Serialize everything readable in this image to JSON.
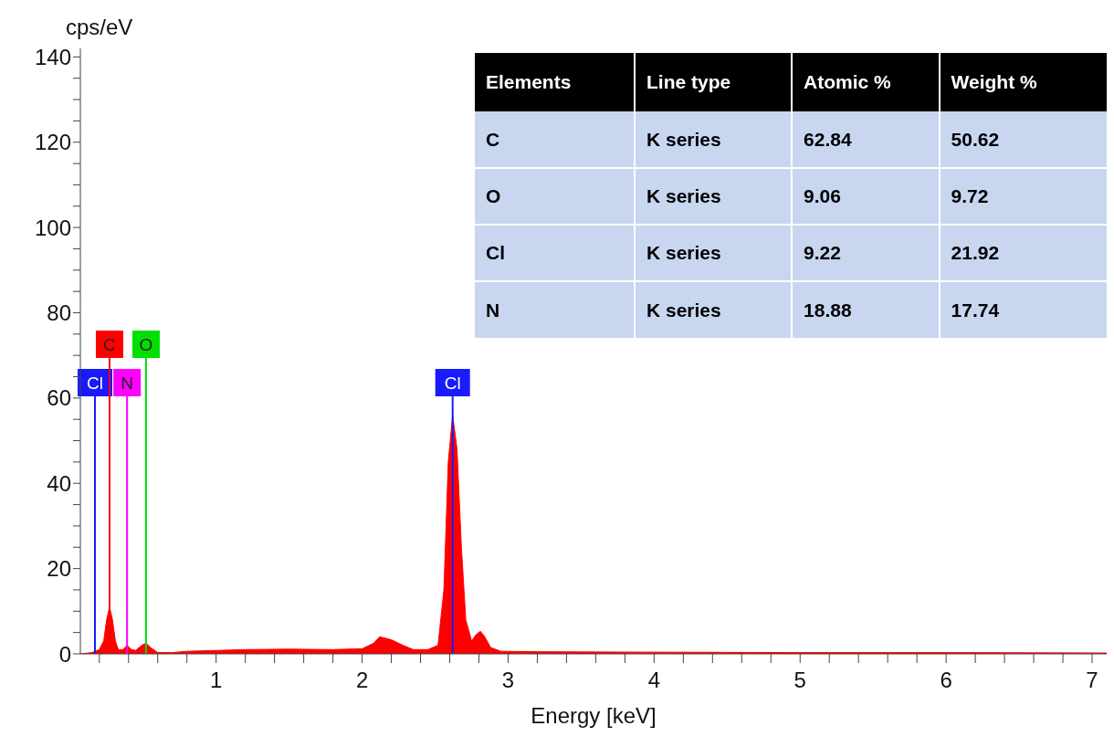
{
  "chart_data": {
    "type": "area",
    "xlabel": "Energy [keV]",
    "ylabel": "cps/eV",
    "x": [
      0.07,
      0.15,
      0.2,
      0.23,
      0.25,
      0.27,
      0.29,
      0.31,
      0.33,
      0.36,
      0.39,
      0.42,
      0.45,
      0.49,
      0.52,
      0.55,
      0.6,
      0.7,
      0.8,
      1.0,
      1.2,
      1.5,
      1.8,
      2.0,
      2.08,
      2.12,
      2.2,
      2.28,
      2.35,
      2.45,
      2.52,
      2.56,
      2.59,
      2.62,
      2.65,
      2.68,
      2.71,
      2.75,
      2.78,
      2.81,
      2.84,
      2.88,
      2.95,
      3.2,
      4.0,
      5.0,
      6.0,
      7.1
    ],
    "series": [
      {
        "color": "#ff0000",
        "values": [
          0,
          0.3,
          1,
          3,
          8,
          11,
          8,
          3,
          1,
          1,
          2,
          1,
          0.8,
          2,
          2.5,
          1.5,
          0.3,
          0.3,
          0.6,
          0.8,
          1,
          1.1,
          1,
          1.2,
          2.5,
          4,
          3.3,
          2,
          1,
          1,
          2,
          15,
          45,
          56,
          48,
          25,
          8,
          3,
          4.5,
          5.3,
          4,
          1.5,
          0.6,
          0.5,
          0.4,
          0.3,
          0.3,
          0.2
        ]
      }
    ],
    "xlim": [
      0.07,
      7.1
    ],
    "ylim": [
      0,
      142
    ],
    "xticks": [
      {
        "value": 0.2,
        "label": null
      },
      {
        "value": 0.4,
        "label": null
      },
      {
        "value": 0.6,
        "label": null
      },
      {
        "value": 0.8,
        "label": null
      },
      1,
      {
        "value": 1.2,
        "label": null
      },
      {
        "value": 1.4,
        "label": null
      },
      {
        "value": 1.6,
        "label": null
      },
      {
        "value": 1.8,
        "label": null
      },
      2,
      {
        "value": 2.2,
        "label": null
      },
      {
        "value": 2.4,
        "label": null
      },
      {
        "value": 2.6,
        "label": null
      },
      {
        "value": 2.8,
        "label": null
      },
      3,
      {
        "value": 3.2,
        "label": null
      },
      {
        "value": 3.4,
        "label": null
      },
      {
        "value": 3.6,
        "label": null
      },
      {
        "value": 3.8,
        "label": null
      },
      4,
      {
        "value": 4.2,
        "label": null
      },
      {
        "value": 4.4,
        "label": null
      },
      {
        "value": 4.6,
        "label": null
      },
      {
        "value": 4.8,
        "label": null
      },
      5,
      {
        "value": 5.2,
        "label": null
      },
      {
        "value": 5.4,
        "label": null
      },
      {
        "value": 5.6,
        "label": null
      },
      {
        "value": 5.8,
        "label": null
      },
      6,
      {
        "value": 6.2,
        "label": null
      },
      {
        "value": 6.4,
        "label": null
      },
      {
        "value": 6.6,
        "label": null
      },
      {
        "value": 6.8,
        "label": null
      },
      7
    ],
    "yticks": [
      0,
      {
        "value": 5,
        "label": null
      },
      {
        "value": 10,
        "label": null
      },
      {
        "value": 15,
        "label": null
      },
      20,
      {
        "value": 25,
        "label": null
      },
      {
        "value": 30,
        "label": null
      },
      {
        "value": 35,
        "label": null
      },
      40,
      {
        "value": 45,
        "label": null
      },
      {
        "value": 50,
        "label": null
      },
      {
        "value": 55,
        "label": null
      },
      60,
      {
        "value": 65,
        "label": null
      },
      {
        "value": 70,
        "label": null
      },
      {
        "value": 75,
        "label": null
      },
      80,
      {
        "value": 85,
        "label": null
      },
      {
        "value": 90,
        "label": null
      },
      {
        "value": 95,
        "label": null
      },
      100,
      {
        "value": 105,
        "label": null
      },
      {
        "value": 110,
        "label": null
      },
      {
        "value": 115,
        "label": null
      },
      120,
      {
        "value": 125,
        "label": null
      },
      {
        "value": 130,
        "label": null
      },
      {
        "value": 135,
        "label": null
      },
      140
    ],
    "ref_lines": [
      {
        "axis": "x",
        "value": 0.17,
        "label": "Cl",
        "color": "#1a1aff"
      },
      {
        "axis": "x",
        "value": 0.27,
        "label": "C",
        "color": "#ff0000"
      },
      {
        "axis": "x",
        "value": 0.39,
        "label": "N",
        "color": "#ff00ff"
      },
      {
        "axis": "x",
        "value": 0.52,
        "label": "O",
        "color": "#00e000"
      },
      {
        "axis": "x",
        "value": 2.62,
        "label": "Cl",
        "color": "#1a1aff"
      }
    ],
    "annotations": [
      "Elements",
      "Line type",
      "Atomic %",
      "Weight %",
      "C",
      "K series",
      "62.84",
      "50.62",
      "O",
      "K series",
      "9.06",
      "9.72",
      "Cl",
      "K series",
      "9.22",
      "21.92",
      "N",
      "K series",
      "18.88",
      "17.74"
    ],
    "grid": false,
    "legend": false
  }
}
